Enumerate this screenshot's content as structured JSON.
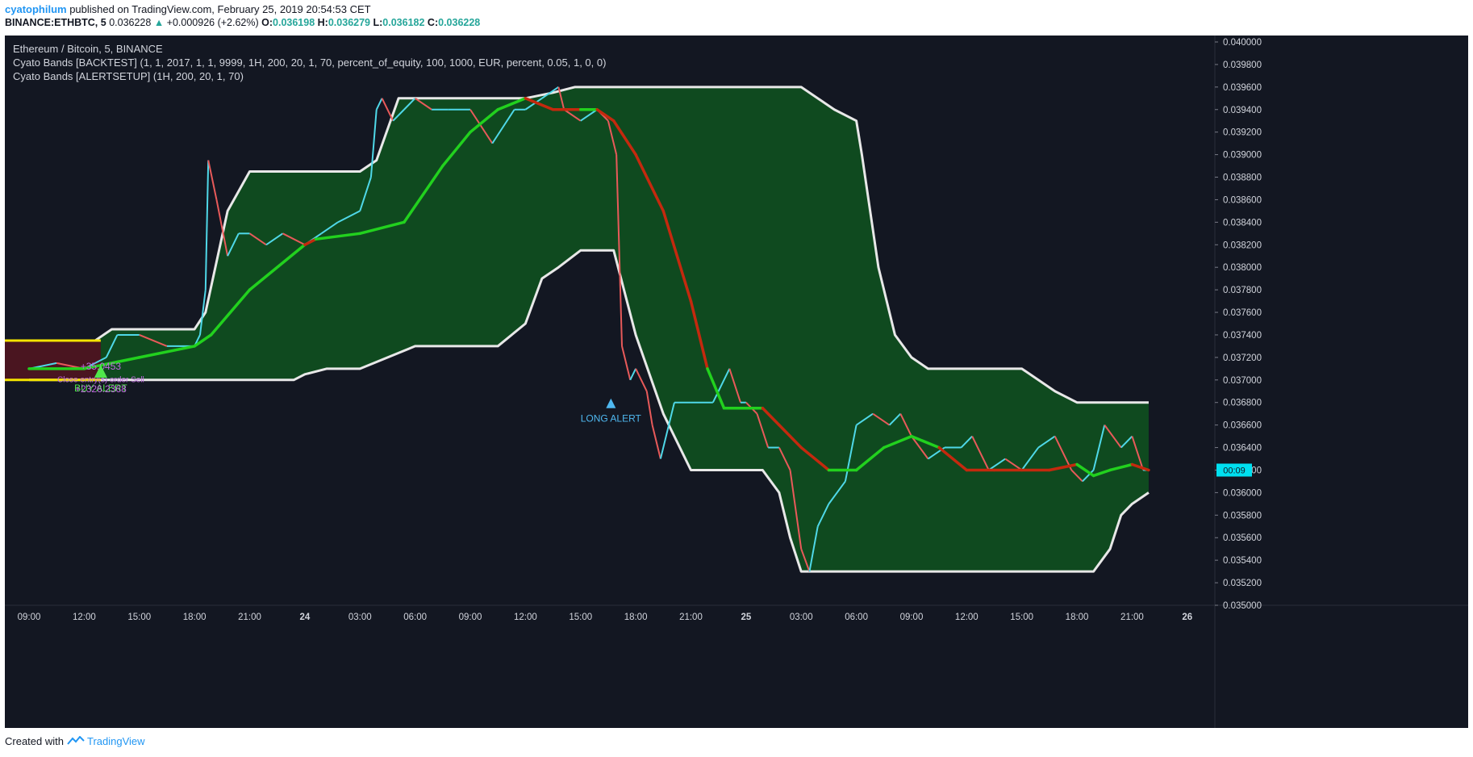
{
  "header": {
    "author": "cyatophilum",
    "published": "published on TradingView.com, February 25, 2019 20:54:53 CET"
  },
  "ohlc": {
    "symbol": "BINANCE:ETHBTC, 5",
    "last": "0.036228",
    "change": "+0.000926 (+2.62%)",
    "o_label": "O:",
    "o": "0.036198",
    "h_label": "H:",
    "h": "0.036279",
    "l_label": "L:",
    "l": "0.036182",
    "c_label": "C:",
    "c": "0.036228"
  },
  "legend": {
    "title": "Ethereum / Bitcoin, 5, BINANCE",
    "line1": "Cyato Bands [BACKTEST] (1, 1, 2017, 1, 1, 9999, 1H, 200, 20, 1, 70, percent_of_equity, 100, 1000, EUR, percent, 0.05, 1, 0, 0)",
    "line2": "Cyato Bands [ALERTSETUP] (1H, 200, 20, 1, 70)"
  },
  "footer": {
    "created": "Created with",
    "brand": "TradingView"
  },
  "colors": {
    "background": "#131722",
    "band_fill": "#0f4a1f",
    "band_edge": "#e8e8e8",
    "ma_up": "#22d11e",
    "ma_down": "#c4290e",
    "candle_up": "#4fd8e8",
    "candle_down": "#e85a5a",
    "axis_text": "#d1d4dc",
    "price_tag": "#00e0f0"
  },
  "chart_data": {
    "type": "line",
    "title": "Ethereum / Bitcoin, 5, BINANCE",
    "y_ticks": [
      "0.040000",
      "0.039800",
      "0.039600",
      "0.039400",
      "0.039200",
      "0.039000",
      "0.038800",
      "0.038600",
      "0.038400",
      "0.038200",
      "0.038000",
      "0.037800",
      "0.037600",
      "0.037400",
      "0.037200",
      "0.037000",
      "0.036800",
      "0.036600",
      "0.036400",
      "0.036200",
      "0.036000",
      "0.035800",
      "0.035600",
      "0.035400",
      "0.035200",
      "0.035000"
    ],
    "y_min": 0.035,
    "y_max": 0.04,
    "x_ticks": [
      "09:00",
      "12:00",
      "15:00",
      "18:00",
      "21:00",
      "24",
      "03:00",
      "06:00",
      "09:00",
      "12:00",
      "15:00",
      "18:00",
      "21:00",
      "25",
      "03:00",
      "06:00",
      "09:00",
      "12:00",
      "15:00",
      "18:00",
      "21:00",
      "26"
    ],
    "x_tick_bold": [
      false,
      false,
      false,
      false,
      false,
      true,
      false,
      false,
      false,
      false,
      false,
      false,
      false,
      true,
      false,
      false,
      false,
      false,
      false,
      false,
      false,
      true
    ],
    "x_range": [
      0,
      21.5
    ],
    "price_tag": "00:09",
    "series": [
      {
        "role": "band-upper",
        "x": [
          0,
          0.6,
          1.2,
          1.5,
          2.5,
          3.0,
          3.2,
          3.6,
          4.0,
          6.0,
          6.3,
          6.7,
          7.0,
          8.0,
          9.0,
          9.5,
          9.9,
          10.0,
          14.0,
          14.6,
          15.0,
          15.1,
          15.4,
          15.7,
          16.0,
          16.3,
          17.0,
          18.0,
          18.6,
          19.0,
          19.2,
          20.0,
          20.3
        ],
        "y": [
          0.03735,
          0.03735,
          0.03735,
          0.03745,
          0.03745,
          0.03745,
          0.0376,
          0.0385,
          0.03885,
          0.03885,
          0.03895,
          0.0395,
          0.0395,
          0.0395,
          0.0395,
          0.03955,
          0.0396,
          0.0396,
          0.0396,
          0.0394,
          0.0393,
          0.039,
          0.038,
          0.0374,
          0.0372,
          0.0371,
          0.0371,
          0.0371,
          0.0369,
          0.0368,
          0.0368,
          0.0368,
          0.0368
        ]
      },
      {
        "role": "band-lower",
        "x": [
          0,
          1.0,
          2.0,
          3.0,
          4.0,
          4.8,
          5.0,
          5.4,
          6.0,
          7.0,
          8.0,
          8.5,
          9.0,
          9.3,
          9.6,
          10.0,
          10.6,
          11.0,
          11.5,
          12.0,
          13.0,
          13.3,
          13.6,
          13.8,
          14.0,
          15.0,
          16.0,
          17.0,
          18.0,
          19.0,
          19.3,
          19.6,
          19.8,
          20.0,
          20.3
        ],
        "y": [
          0.037,
          0.037,
          0.037,
          0.037,
          0.037,
          0.037,
          0.03705,
          0.0371,
          0.0371,
          0.0373,
          0.0373,
          0.0373,
          0.0375,
          0.0379,
          0.038,
          0.03815,
          0.03815,
          0.0374,
          0.0367,
          0.0362,
          0.0362,
          0.0362,
          0.036,
          0.0356,
          0.0353,
          0.0353,
          0.0353,
          0.0353,
          0.0353,
          0.0353,
          0.0353,
          0.0355,
          0.0358,
          0.0359,
          0.036
        ]
      },
      {
        "role": "ma",
        "x": [
          0,
          1.0,
          2.0,
          3.0,
          3.3,
          4.0,
          5.0,
          5.2,
          6.0,
          6.8,
          7.5,
          8.0,
          8.5,
          9.0,
          9.5,
          10.0,
          10.3,
          10.6,
          11.0,
          11.5,
          12.0,
          12.3,
          12.6,
          13.0,
          13.3,
          13.6,
          14.0,
          14.5,
          15.0,
          15.5,
          16.0,
          16.5,
          17.0,
          17.5,
          18.0,
          18.5,
          19.0,
          19.3,
          19.6,
          20.0,
          20.3
        ],
        "y": [
          0.0371,
          0.0371,
          0.0372,
          0.0373,
          0.0374,
          0.0378,
          0.0382,
          0.03825,
          0.0383,
          0.0384,
          0.0389,
          0.0392,
          0.0394,
          0.0395,
          0.0394,
          0.0394,
          0.0394,
          0.0393,
          0.039,
          0.0385,
          0.0377,
          0.0371,
          0.03675,
          0.03675,
          0.03675,
          0.0366,
          0.0364,
          0.0362,
          0.0362,
          0.0364,
          0.0365,
          0.0364,
          0.0362,
          0.0362,
          0.0362,
          0.0362,
          0.03625,
          0.03615,
          0.0362,
          0.03625,
          0.0362
        ],
        "down_ranges": [
          [
            5.0,
            5.3
          ],
          [
            8.8,
            10.0
          ],
          [
            10.4,
            12.3
          ],
          [
            13.2,
            14.6
          ],
          [
            16.4,
            17.8
          ],
          [
            18.1,
            19.0
          ],
          [
            20.0,
            20.3
          ]
        ]
      },
      {
        "role": "price",
        "x": [
          0,
          0.5,
          1.0,
          1.4,
          1.6,
          2.0,
          2.5,
          3.0,
          3.1,
          3.2,
          3.25,
          3.4,
          3.6,
          3.8,
          4.0,
          4.3,
          4.6,
          5.0,
          5.3,
          5.6,
          6.0,
          6.2,
          6.3,
          6.4,
          6.6,
          6.8,
          7.0,
          7.3,
          7.6,
          8.0,
          8.4,
          8.8,
          9.0,
          9.3,
          9.6,
          9.7,
          10.0,
          10.3,
          10.5,
          10.65,
          10.75,
          10.9,
          11.0,
          11.2,
          11.3,
          11.45,
          11.7,
          12.0,
          12.4,
          12.7,
          12.9,
          13.0,
          13.2,
          13.4,
          13.6,
          13.8,
          14.0,
          14.15,
          14.3,
          14.5,
          14.8,
          15.0,
          15.3,
          15.6,
          15.8,
          16.0,
          16.3,
          16.6,
          16.9,
          17.1,
          17.4,
          17.7,
          18.0,
          18.3,
          18.6,
          18.9,
          19.1,
          19.3,
          19.5,
          19.8,
          20.0,
          20.2,
          20.3
        ],
        "y": [
          0.0371,
          0.03715,
          0.0371,
          0.0372,
          0.0374,
          0.0374,
          0.0373,
          0.0373,
          0.0374,
          0.0378,
          0.03895,
          0.0386,
          0.0381,
          0.0383,
          0.0383,
          0.0382,
          0.0383,
          0.0382,
          0.0383,
          0.0384,
          0.0385,
          0.0388,
          0.0394,
          0.0395,
          0.0393,
          0.0394,
          0.0395,
          0.0394,
          0.0394,
          0.0394,
          0.0391,
          0.0394,
          0.0394,
          0.0395,
          0.0396,
          0.0394,
          0.0393,
          0.0394,
          0.0393,
          0.039,
          0.0373,
          0.037,
          0.0371,
          0.0369,
          0.0366,
          0.0363,
          0.0368,
          0.0368,
          0.0368,
          0.0371,
          0.0368,
          0.0368,
          0.0367,
          0.0364,
          0.0364,
          0.0362,
          0.0355,
          0.0353,
          0.0357,
          0.0359,
          0.0361,
          0.0366,
          0.0367,
          0.0366,
          0.0367,
          0.0365,
          0.0363,
          0.0364,
          0.0364,
          0.0365,
          0.0362,
          0.0363,
          0.0362,
          0.0364,
          0.0365,
          0.0362,
          0.0361,
          0.0362,
          0.0366,
          0.0364,
          0.0365,
          0.0362,
          0.0362
        ]
      },
      {
        "role": "level-upper",
        "x": [
          0,
          1.3
        ],
        "y": [
          0.03735,
          0.03735
        ]
      },
      {
        "role": "level-lower",
        "x": [
          0,
          1.3
        ],
        "y": [
          0.037,
          0.037
        ]
      }
    ],
    "annotations": [
      {
        "text": "BUY ALERT",
        "x": 1.3,
        "y": 0.0369,
        "color": "#4fe84a"
      },
      {
        "text": "Close entry(s) order Sell",
        "x": 1.3,
        "y": 0.03698,
        "color": "#c06be0"
      },
      {
        "text": "+2326.2368",
        "x": 1.3,
        "y": 0.03689,
        "color": "#c06be0"
      },
      {
        "text": "+35.0453",
        "x": 1.3,
        "y": 0.03709,
        "color": "#c06be0"
      },
      {
        "text": "LONG ALERT",
        "x": 10.55,
        "y": 0.03663,
        "color": "#4fb8f0"
      }
    ]
  }
}
